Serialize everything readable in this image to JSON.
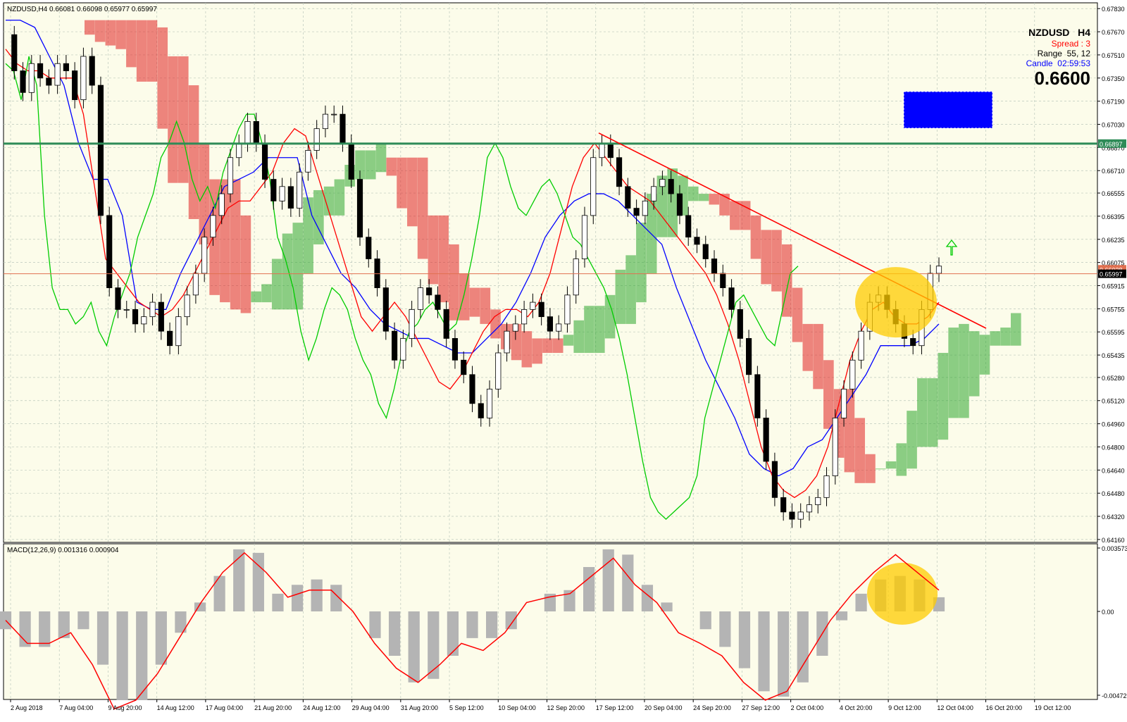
{
  "header": {
    "symbol_line": "NZDUSD,H4  0.66081 0.66098 0.65977 0.65997",
    "symbol": "NZDUSD",
    "timeframe": "H4",
    "spread_label": "Spread",
    "spread_value": "3",
    "range_label": "Range",
    "range_value": "55, 12",
    "candle_label": "Candle",
    "candle_value": "02:59:53",
    "big_price": "0.6600"
  },
  "colors": {
    "background": "#ffffff",
    "plot_bg": "#fcfcea",
    "grid": "#bcc8bc",
    "candle": "#000000",
    "tenkan": "#ff0000",
    "kijun": "#0000ff",
    "chikou": "#00cc00",
    "kumo_bull": "#2ea52e",
    "kumo_bear": "#e02020",
    "resistance": "#2e8b57",
    "trendline": "#ff0000",
    "highlight": "#ffcc00",
    "macd_hist": "#b4b4b4",
    "macd_signal": "#ff0000",
    "box": "#0000ff"
  },
  "chart_data": {
    "type": "candlestick",
    "price_axis": {
      "ticks": [
        "0.67830",
        "0.67670",
        "0.67510",
        "0.67350",
        "0.67190",
        "0.67030",
        "0.66870",
        "0.66710",
        "0.66555",
        "0.66395",
        "0.66235",
        "0.66075",
        "0.65915",
        "0.65755",
        "0.65595",
        "0.65435",
        "0.65280",
        "0.65120",
        "0.64960",
        "0.64800",
        "0.64640",
        "0.64480",
        "0.64320",
        "0.64160"
      ],
      "ylim": [
        0.6414,
        0.6787
      ],
      "resistance_label": "0.66897",
      "resistance_value": 0.66897,
      "current_label": "0.65997",
      "current_value": 0.65997,
      "bid_label": "0.66028",
      "bid_value": 0.66028
    },
    "time_axis": [
      "2 Aug 2018",
      "7 Aug 04:00",
      "9 Aug 20:00",
      "14 Aug 12:00",
      "17 Aug 04:00",
      "21 Aug 20:00",
      "24 Aug 12:00",
      "29 Aug 04:00",
      "31 Aug 20:00",
      "5 Sep 12:00",
      "10 Sep 04:00",
      "12 Sep 20:00",
      "17 Sep 12:00",
      "20 Sep 04:00",
      "24 Sep 20:00",
      "27 Sep 12:00",
      "2 Oct 04:00",
      "4 Oct 20:00",
      "9 Oct 12:00",
      "12 Oct 04:00",
      "16 Oct 20:00",
      "19 Oct 12:00"
    ],
    "price_path": [
      0.6765,
      0.674,
      0.6725,
      0.6745,
      0.6735,
      0.673,
      0.6745,
      0.674,
      0.672,
      0.675,
      0.673,
      0.664,
      0.659,
      0.6575,
      0.6575,
      0.6565,
      0.657,
      0.658,
      0.656,
      0.655,
      0.657,
      0.6585,
      0.66,
      0.6625,
      0.664,
      0.6655,
      0.668,
      0.669,
      0.6705,
      0.669,
      0.6665,
      0.665,
      0.666,
      0.6645,
      0.667,
      0.6685,
      0.67,
      0.671,
      0.671,
      0.669,
      0.6665,
      0.6625,
      0.661,
      0.659,
      0.656,
      0.654,
      0.6555,
      0.6575,
      0.659,
      0.6585,
      0.6575,
      0.6555,
      0.654,
      0.653,
      0.651,
      0.65,
      0.652,
      0.6545,
      0.656,
      0.6565,
      0.6575,
      0.658,
      0.657,
      0.656,
      0.6565,
      0.6585,
      0.661,
      0.664,
      0.668,
      0.669,
      0.668,
      0.666,
      0.6645,
      0.664,
      0.665,
      0.666,
      0.6665,
      0.6655,
      0.664,
      0.6625,
      0.662,
      0.661,
      0.66,
      0.659,
      0.6575,
      0.6555,
      0.653,
      0.65,
      0.647,
      0.6445,
      0.6435,
      0.643,
      0.6435,
      0.644,
      0.6445,
      0.646,
      0.65,
      0.652,
      0.654,
      0.656,
      0.658,
      0.6585,
      0.6575,
      0.6565,
      0.6555,
      0.655,
      0.6575,
      0.66,
      0.6605
    ],
    "tenkan": [
      0.6755,
      0.6745,
      0.674,
      0.674,
      0.6735,
      0.6735,
      0.6735,
      0.671,
      0.666,
      0.661,
      0.66,
      0.659,
      0.658,
      0.6575,
      0.657,
      0.6575,
      0.6585,
      0.66,
      0.6615,
      0.663,
      0.6645,
      0.665,
      0.665,
      0.666,
      0.667,
      0.669,
      0.67,
      0.6695,
      0.667,
      0.6645,
      0.662,
      0.6595,
      0.657,
      0.656,
      0.657,
      0.658,
      0.657,
      0.6555,
      0.654,
      0.6525,
      0.652,
      0.653,
      0.6545,
      0.656,
      0.657,
      0.6575,
      0.6575,
      0.657,
      0.658,
      0.66,
      0.663,
      0.666,
      0.668,
      0.669,
      0.668,
      0.667,
      0.666,
      0.6655,
      0.665,
      0.664,
      0.663,
      0.662,
      0.661,
      0.66,
      0.6585,
      0.6565,
      0.654,
      0.651,
      0.648,
      0.646,
      0.645,
      0.6445,
      0.645,
      0.646,
      0.648,
      0.651,
      0.654,
      0.656,
      0.6575,
      0.658,
      0.657,
      0.6565,
      0.6565,
      0.657,
      0.658
    ],
    "kijun": [
      0.6775,
      0.6775,
      0.677,
      0.675,
      0.673,
      0.669,
      0.6665,
      0.6665,
      0.664,
      0.658,
      0.6575,
      0.6575,
      0.66,
      0.662,
      0.664,
      0.666,
      0.6665,
      0.667,
      0.668,
      0.668,
      0.668,
      0.664,
      0.662,
      0.66,
      0.659,
      0.6575,
      0.6565,
      0.656,
      0.6555,
      0.6555,
      0.655,
      0.6545,
      0.6545,
      0.6555,
      0.6565,
      0.658,
      0.66,
      0.6625,
      0.664,
      0.665,
      0.6655,
      0.6655,
      0.665,
      0.664,
      0.663,
      0.662,
      0.659,
      0.6565,
      0.654,
      0.652,
      0.65,
      0.6475,
      0.6465,
      0.646,
      0.6465,
      0.648,
      0.6485,
      0.65,
      0.6515,
      0.653,
      0.655,
      0.655,
      0.655,
      0.6555,
      0.6565
    ],
    "macd": {
      "label": "MACD(12,26,9) 0.001316 0.000904",
      "ticks": [
        "0.003573",
        "0.00",
        "-0.004722"
      ],
      "ylim": [
        -0.004722,
        0.003573
      ],
      "hist": [
        -0.001,
        -0.002,
        -0.002,
        -0.0015,
        -0.001,
        -0.003,
        -0.005,
        -0.005,
        -0.003,
        -0.0012,
        0.0005,
        0.002,
        0.0035,
        0.0033,
        0.001,
        0.0015,
        0.0018,
        0.0015,
        0.0,
        -0.0015,
        -0.0025,
        -0.004,
        -0.0038,
        -0.0025,
        -0.0015,
        -0.0015,
        -0.001,
        0.0,
        0.001,
        0.0012,
        0.0025,
        0.0035,
        0.0032,
        0.0015,
        0.0005,
        0.0,
        -0.001,
        -0.002,
        -0.0032,
        -0.0045,
        -0.0048,
        -0.004,
        -0.0025,
        -0.0005,
        0.001,
        0.0018,
        0.002,
        0.0018,
        0.0008
      ],
      "signal": [
        -0.0005,
        -0.0018,
        -0.0018,
        -0.0012,
        -0.003,
        -0.0055,
        -0.005,
        -0.0035,
        -0.0015,
        0.0005,
        0.0022,
        0.0033,
        0.0022,
        0.0008,
        0.0012,
        0.0012,
        0.0,
        -0.0018,
        -0.0032,
        -0.004,
        -0.003,
        -0.0018,
        -0.0022,
        -0.0012,
        0.0005,
        0.0008,
        0.001,
        0.002,
        0.003,
        0.0015,
        0.0005,
        -0.0012,
        -0.0018,
        -0.0025,
        -0.004,
        -0.005,
        -0.0045,
        -0.0025,
        -0.0005,
        0.001,
        0.0022,
        0.0032,
        0.0022,
        0.0012
      ]
    }
  }
}
